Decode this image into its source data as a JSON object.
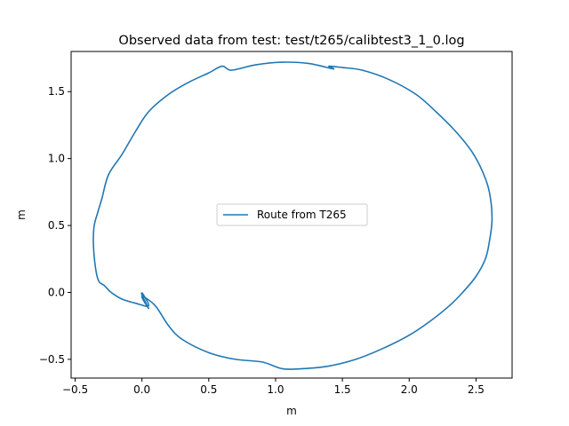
{
  "chart_data": {
    "type": "line",
    "title": "Observed data from test: test/t265/calibtest3_1_0.log",
    "xlabel": "m",
    "ylabel": "m",
    "xlim": [
      -0.53,
      2.77
    ],
    "ylim": [
      -0.64,
      1.8
    ],
    "xticks": [
      -0.5,
      0.0,
      0.5,
      1.0,
      1.5,
      2.0,
      2.5
    ],
    "xtick_labels": [
      "−0.5",
      "0.0",
      "0.5",
      "1.0",
      "1.5",
      "2.0",
      "2.5"
    ],
    "yticks": [
      -0.5,
      0.0,
      0.5,
      1.0,
      1.5
    ],
    "ytick_labels": [
      "−0.5",
      "0.0",
      "0.5",
      "1.0",
      "1.5"
    ],
    "grid": false,
    "legend_position": "center",
    "series": [
      {
        "name": "Route from T265",
        "color": "#1f77b4",
        "x": [
          0.0,
          0.0,
          0.05,
          0.0,
          0.1,
          0.2,
          0.3,
          0.5,
          0.7,
          0.9,
          1.05,
          1.2,
          1.4,
          1.6,
          1.8,
          2.0,
          2.15,
          2.3,
          2.4,
          2.5,
          2.57,
          2.6,
          2.62,
          2.6,
          2.55,
          2.47,
          2.35,
          2.2,
          2.05,
          1.85,
          1.65,
          1.5,
          1.4,
          1.43,
          1.25,
          1.05,
          0.85,
          0.67,
          0.6,
          0.5,
          0.35,
          0.2,
          0.05,
          -0.05,
          -0.15,
          -0.25,
          -0.3,
          -0.33,
          -0.36,
          -0.36,
          -0.33,
          -0.28,
          -0.23,
          -0.15,
          -0.05,
          0.05,
          0.0
        ],
        "y": [
          0.0,
          -0.02,
          -0.12,
          -0.03,
          -0.1,
          -0.25,
          -0.35,
          -0.45,
          -0.5,
          -0.52,
          -0.57,
          -0.57,
          -0.55,
          -0.5,
          -0.42,
          -0.32,
          -0.22,
          -0.1,
          0.0,
          0.12,
          0.25,
          0.38,
          0.55,
          0.75,
          0.9,
          1.05,
          1.2,
          1.35,
          1.48,
          1.59,
          1.66,
          1.68,
          1.69,
          1.67,
          1.71,
          1.72,
          1.7,
          1.66,
          1.69,
          1.64,
          1.57,
          1.48,
          1.35,
          1.2,
          1.03,
          0.88,
          0.7,
          0.6,
          0.48,
          0.3,
          0.1,
          0.05,
          0.0,
          -0.05,
          -0.08,
          -0.1,
          0.0
        ]
      }
    ]
  }
}
